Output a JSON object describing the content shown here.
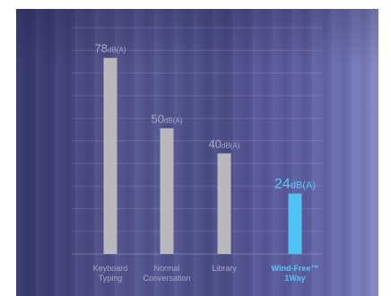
{
  "chart_data": {
    "type": "bar",
    "title": "",
    "xlabel": "",
    "ylabel": "",
    "ylim": [
      0,
      90
    ],
    "grid": true,
    "categories": [
      [
        "Keyboard",
        "Typing"
      ],
      [
        "Normal",
        "Conversation"
      ],
      [
        "Library"
      ],
      [
        "Wind-Free™",
        "1Way"
      ]
    ],
    "values": [
      78,
      50,
      40,
      24
    ],
    "value_labels": [
      {
        "number": "78",
        "unit": "dB(A)"
      },
      {
        "number": "50",
        "unit": "dB(A)"
      },
      {
        "number": "40",
        "unit": "dB(A)"
      },
      {
        "number": "24",
        "unit": "dB(A)"
      }
    ],
    "highlight_index": 3,
    "colors": {
      "bar": "#b9b9bd",
      "highlight_bar": "#4fc3f3",
      "label": "#a7a9c6",
      "highlight_label": "#5cc7f5",
      "grid": "rgba(255,255,255,0.13)",
      "axis": "rgba(255,255,255,0.22)"
    }
  }
}
